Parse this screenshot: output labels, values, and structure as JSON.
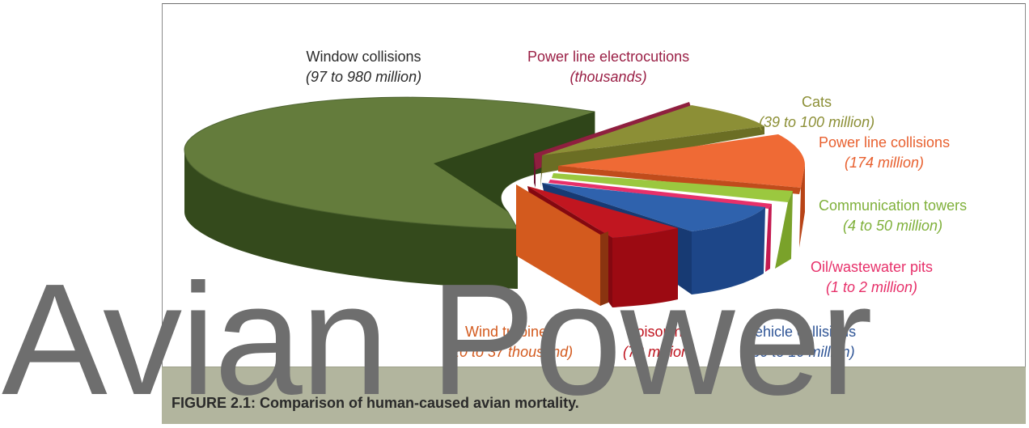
{
  "caption": "FIGURE 2.1: Comparison of human-caused avian mortality.",
  "watermark": "Avian Power",
  "chart_data": {
    "type": "pie",
    "style": "3d-exploded",
    "title": "",
    "slices": [
      {
        "label": "Window collisions",
        "range": "(97 to 980 million)",
        "color": "#647c3c"
      },
      {
        "label": "Power line electrocutions",
        "range": "(thousands)",
        "color": "#8f1f3f"
      },
      {
        "label": "Cats",
        "range": "(39 to 100 million)",
        "color": "#8c8f36"
      },
      {
        "label": "Power line collisions",
        "range": "(174 million)",
        "color": "#e8602f"
      },
      {
        "label": "Communication towers",
        "range": "(4 to 50 million)",
        "color": "#8cba39"
      },
      {
        "label": "Oil/wastewater pits",
        "range": "(1 to 2 million)",
        "color": "#e7306a"
      },
      {
        "label": "Vehicle collisions",
        "range": "(60 to 10 million)",
        "color": "#2f5596"
      },
      {
        "label": "Poisoning",
        "range": "(72 million)",
        "color": "#b9131e"
      },
      {
        "label": "Wind turbines",
        "range": "(20 to 37 thousand)",
        "color": "#cf5a1f"
      }
    ]
  }
}
